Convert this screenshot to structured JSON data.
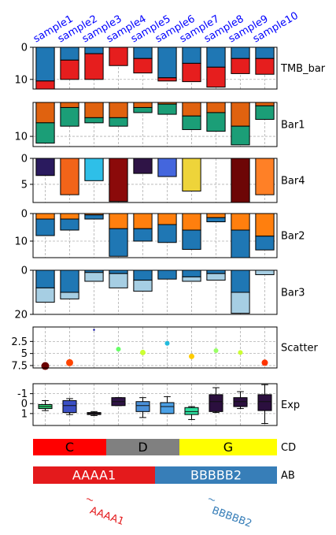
{
  "samples": [
    "sample1",
    "sample2",
    "sample3",
    "sample4",
    "sample5",
    "sample6",
    "sample7",
    "sample8",
    "sample9",
    "sample10"
  ],
  "sample_label_color": "#0000ff",
  "chart_data": [
    {
      "name": "TMB_bar",
      "type": "stacked-bar",
      "y_inverted": true,
      "ylim": [
        0,
        13
      ],
      "yticks": [
        0,
        10
      ],
      "grid": true,
      "series": [
        {
          "color": "#1f77b4",
          "values": [
            10.5,
            4,
            2,
            0,
            3.5,
            9.5,
            5,
            6.2,
            3.5,
            3.5
          ]
        },
        {
          "color": "#e61e1e",
          "values": [
            2.5,
            6,
            8,
            5.7,
            4.5,
            1,
            5.7,
            6.2,
            4.7,
            4.9
          ]
        }
      ]
    },
    {
      "name": "Bar1",
      "type": "stacked-bar",
      "y_inverted": true,
      "ylim": [
        0,
        13
      ],
      "yticks": [
        10
      ],
      "grid": true,
      "series": [
        {
          "color": "#e0620f",
          "values": [
            6,
            1.5,
            4.5,
            4.5,
            1.5,
            0.5,
            4,
            3,
            7,
            1
          ]
        },
        {
          "color": "#1b9e77",
          "values": [
            6,
            5.5,
            1.5,
            2.5,
            1.5,
            3,
            4,
            5.5,
            5.5,
            4
          ]
        }
      ]
    },
    {
      "name": "Bar4",
      "type": "bar",
      "y_inverted": true,
      "ylim": [
        0,
        8.5
      ],
      "yticks": [
        0,
        5
      ],
      "grid": true,
      "values": [
        3.3,
        7,
        4.3,
        8.3,
        2.9,
        3.5,
        6.3,
        null,
        8.5,
        7
      ],
      "colors": [
        "#2a1a5e",
        "#f26419",
        "#2ebfe8",
        "#8b0a0a",
        "#2f1446",
        "#4466dd",
        "#eed43a",
        null,
        "#6d0606",
        "#ff8026"
      ]
    },
    {
      "name": "Bar2",
      "type": "stacked-bar",
      "y_inverted": true,
      "ylim": [
        0,
        16
      ],
      "yticks": [
        0,
        10
      ],
      "grid": true,
      "series": [
        {
          "color": "#ff7f0e",
          "values": [
            2,
            2,
            0.5,
            5.5,
            5.5,
            4,
            6,
            1.5,
            6,
            8.2
          ]
        },
        {
          "color": "#1f77b4",
          "values": [
            6,
            4,
            1.5,
            10,
            4.5,
            6.5,
            7,
            1.5,
            10,
            5
          ]
        }
      ]
    },
    {
      "name": "Bar3",
      "type": "stacked-bar",
      "y_inverted": true,
      "ylim": [
        0,
        20
      ],
      "yticks": [
        0,
        20
      ],
      "grid": true,
      "series": [
        {
          "color": "#1f77b4",
          "values": [
            8,
            10,
            1,
            1.5,
            4.5,
            4,
            3,
            1.5,
            10,
            0
          ]
        },
        {
          "color": "#a6cee3",
          "values": [
            6.5,
            3,
            4,
            6.5,
            5,
            0,
            2,
            3,
            9.5,
            2
          ]
        }
      ]
    },
    {
      "name": "Scatter",
      "type": "scatter",
      "y_inverted": true,
      "ylim": [
        -0.5,
        8.0
      ],
      "yticks": [
        2.5,
        5.0,
        7.5
      ],
      "grid": true,
      "values": [
        7.6,
        6.9,
        0.1,
        4.1,
        4.8,
        2.9,
        5.6,
        4.4,
        4.8,
        6.9
      ],
      "sizes": [
        5,
        4.5,
        1.2,
        3,
        3.5,
        3,
        3.5,
        3,
        3,
        4
      ],
      "colors": [
        "#6b0000",
        "#ff4400",
        "#0000a0",
        "#66ff66",
        "#ccff33",
        "#22bbdd",
        "#ffcc00",
        "#99ff66",
        "#ccff33",
        "#ff3300"
      ]
    },
    {
      "name": "Exp",
      "type": "box",
      "y_inverted": true,
      "ylim": [
        -2.0,
        2.2
      ],
      "yticks": [
        -1,
        0,
        1
      ],
      "grid": true,
      "boxes": [
        {
          "min": -0.3,
          "q1": 0.1,
          "med": 0.3,
          "q3": 0.5,
          "max": 0.7,
          "color": "#2ecc71"
        },
        {
          "min": -0.5,
          "q1": -0.3,
          "med": 0.2,
          "q3": 0.9,
          "max": 1.1,
          "color": "#3b4fc4"
        },
        {
          "min": 0.8,
          "q1": 0.9,
          "med": 1.0,
          "q3": 1.1,
          "max": 1.2,
          "color": "#1e1428"
        },
        {
          "min": -0.6,
          "q1": -0.6,
          "med": -0.2,
          "q3": 0.2,
          "max": 0.2,
          "color": "#2f1446"
        },
        {
          "min": -0.6,
          "q1": -0.2,
          "med": 0.2,
          "q3": 0.8,
          "max": 1.4,
          "color": "#4a90d9"
        },
        {
          "min": -0.7,
          "q1": -0.1,
          "med": 0.3,
          "q3": 1.0,
          "max": 1.0,
          "color": "#4aa0e6"
        },
        {
          "min": 0.3,
          "q1": 0.4,
          "med": 0.8,
          "q3": 1.1,
          "max": 1.6,
          "color": "#2ee0a0"
        },
        {
          "min": -1.6,
          "q1": -0.9,
          "med": -0.2,
          "q3": 0.8,
          "max": 0.9,
          "color": "#2b0f3e"
        },
        {
          "min": -1.2,
          "q1": -0.6,
          "med": -0.2,
          "q3": 0.3,
          "max": 0.5,
          "color": "#2b0f3e"
        },
        {
          "min": -1.9,
          "q1": -0.9,
          "med": -0.2,
          "q3": 0.7,
          "max": 2.0,
          "color": "#2b0f3e"
        }
      ]
    },
    {
      "name": "CD",
      "type": "categorical-band",
      "segments": [
        {
          "label": "C",
          "span": 3,
          "color": "#ff0000",
          "text_color": "#000000"
        },
        {
          "label": "D",
          "span": 3,
          "color": "#808080",
          "text_color": "#000000"
        },
        {
          "label": "G",
          "span": 4,
          "color": "#ffff00",
          "text_color": "#000000"
        }
      ]
    },
    {
      "name": "AB",
      "type": "categorical-band",
      "segments": [
        {
          "label": "AAAA1",
          "span": 5,
          "color": "#e41a1c",
          "text_color": "#ffffff"
        },
        {
          "label": "BBBBB2",
          "span": 5,
          "color": "#377eb8",
          "text_color": "#ffffff"
        }
      ]
    }
  ],
  "labels": [
    {
      "text": "AAAA1",
      "color": "#e41a1c",
      "at": 2.5
    },
    {
      "text": "BBBBB2",
      "color": "#377eb8",
      "at": 7.5
    }
  ]
}
